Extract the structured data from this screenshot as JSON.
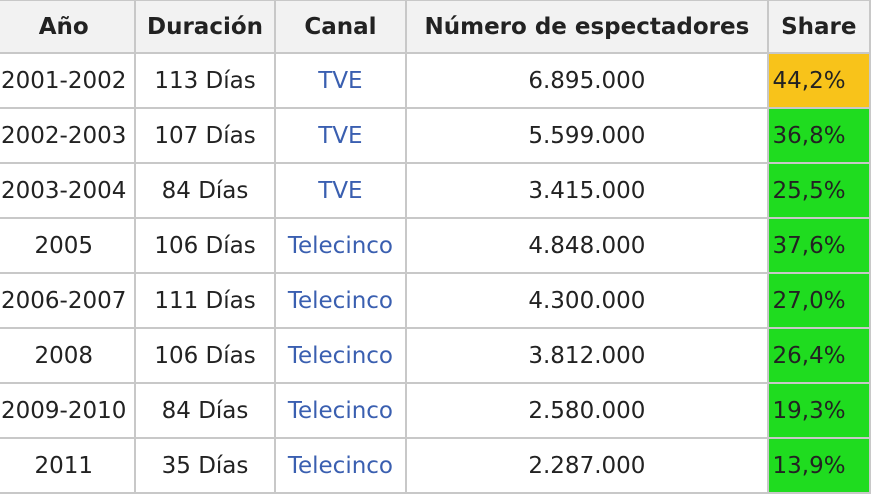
{
  "table": {
    "header": [
      "Año",
      "Duración",
      "Canal",
      "Número de espectadores",
      "Share"
    ],
    "rows": [
      [
        "2001-2002",
        "113 Días",
        "TVE",
        "6.895.000",
        "44,2%"
      ],
      [
        "2002-2003",
        "107 Días",
        "TVE",
        "5.599.000",
        "36,8%"
      ],
      [
        "2003-2004",
        "84 Días",
        "TVE",
        "3.415.000",
        "25,5%"
      ],
      [
        "2005",
        "106 Días",
        "Telecinco",
        "4.848.000",
        "37,6%"
      ],
      [
        "2006-2007",
        "111 Días",
        "Telecinco",
        "4.300.000",
        "27,0%"
      ],
      [
        "2008",
        "106 Días",
        "Telecinco",
        "3.812.000",
        "26,4%"
      ],
      [
        "2009-2010",
        "84 Días",
        "Telecinco",
        "2.580.000",
        "19,3%"
      ],
      [
        "2011",
        "35 Días",
        "Telecinco",
        "2.287.000",
        "13,9%"
      ]
    ]
  }
}
